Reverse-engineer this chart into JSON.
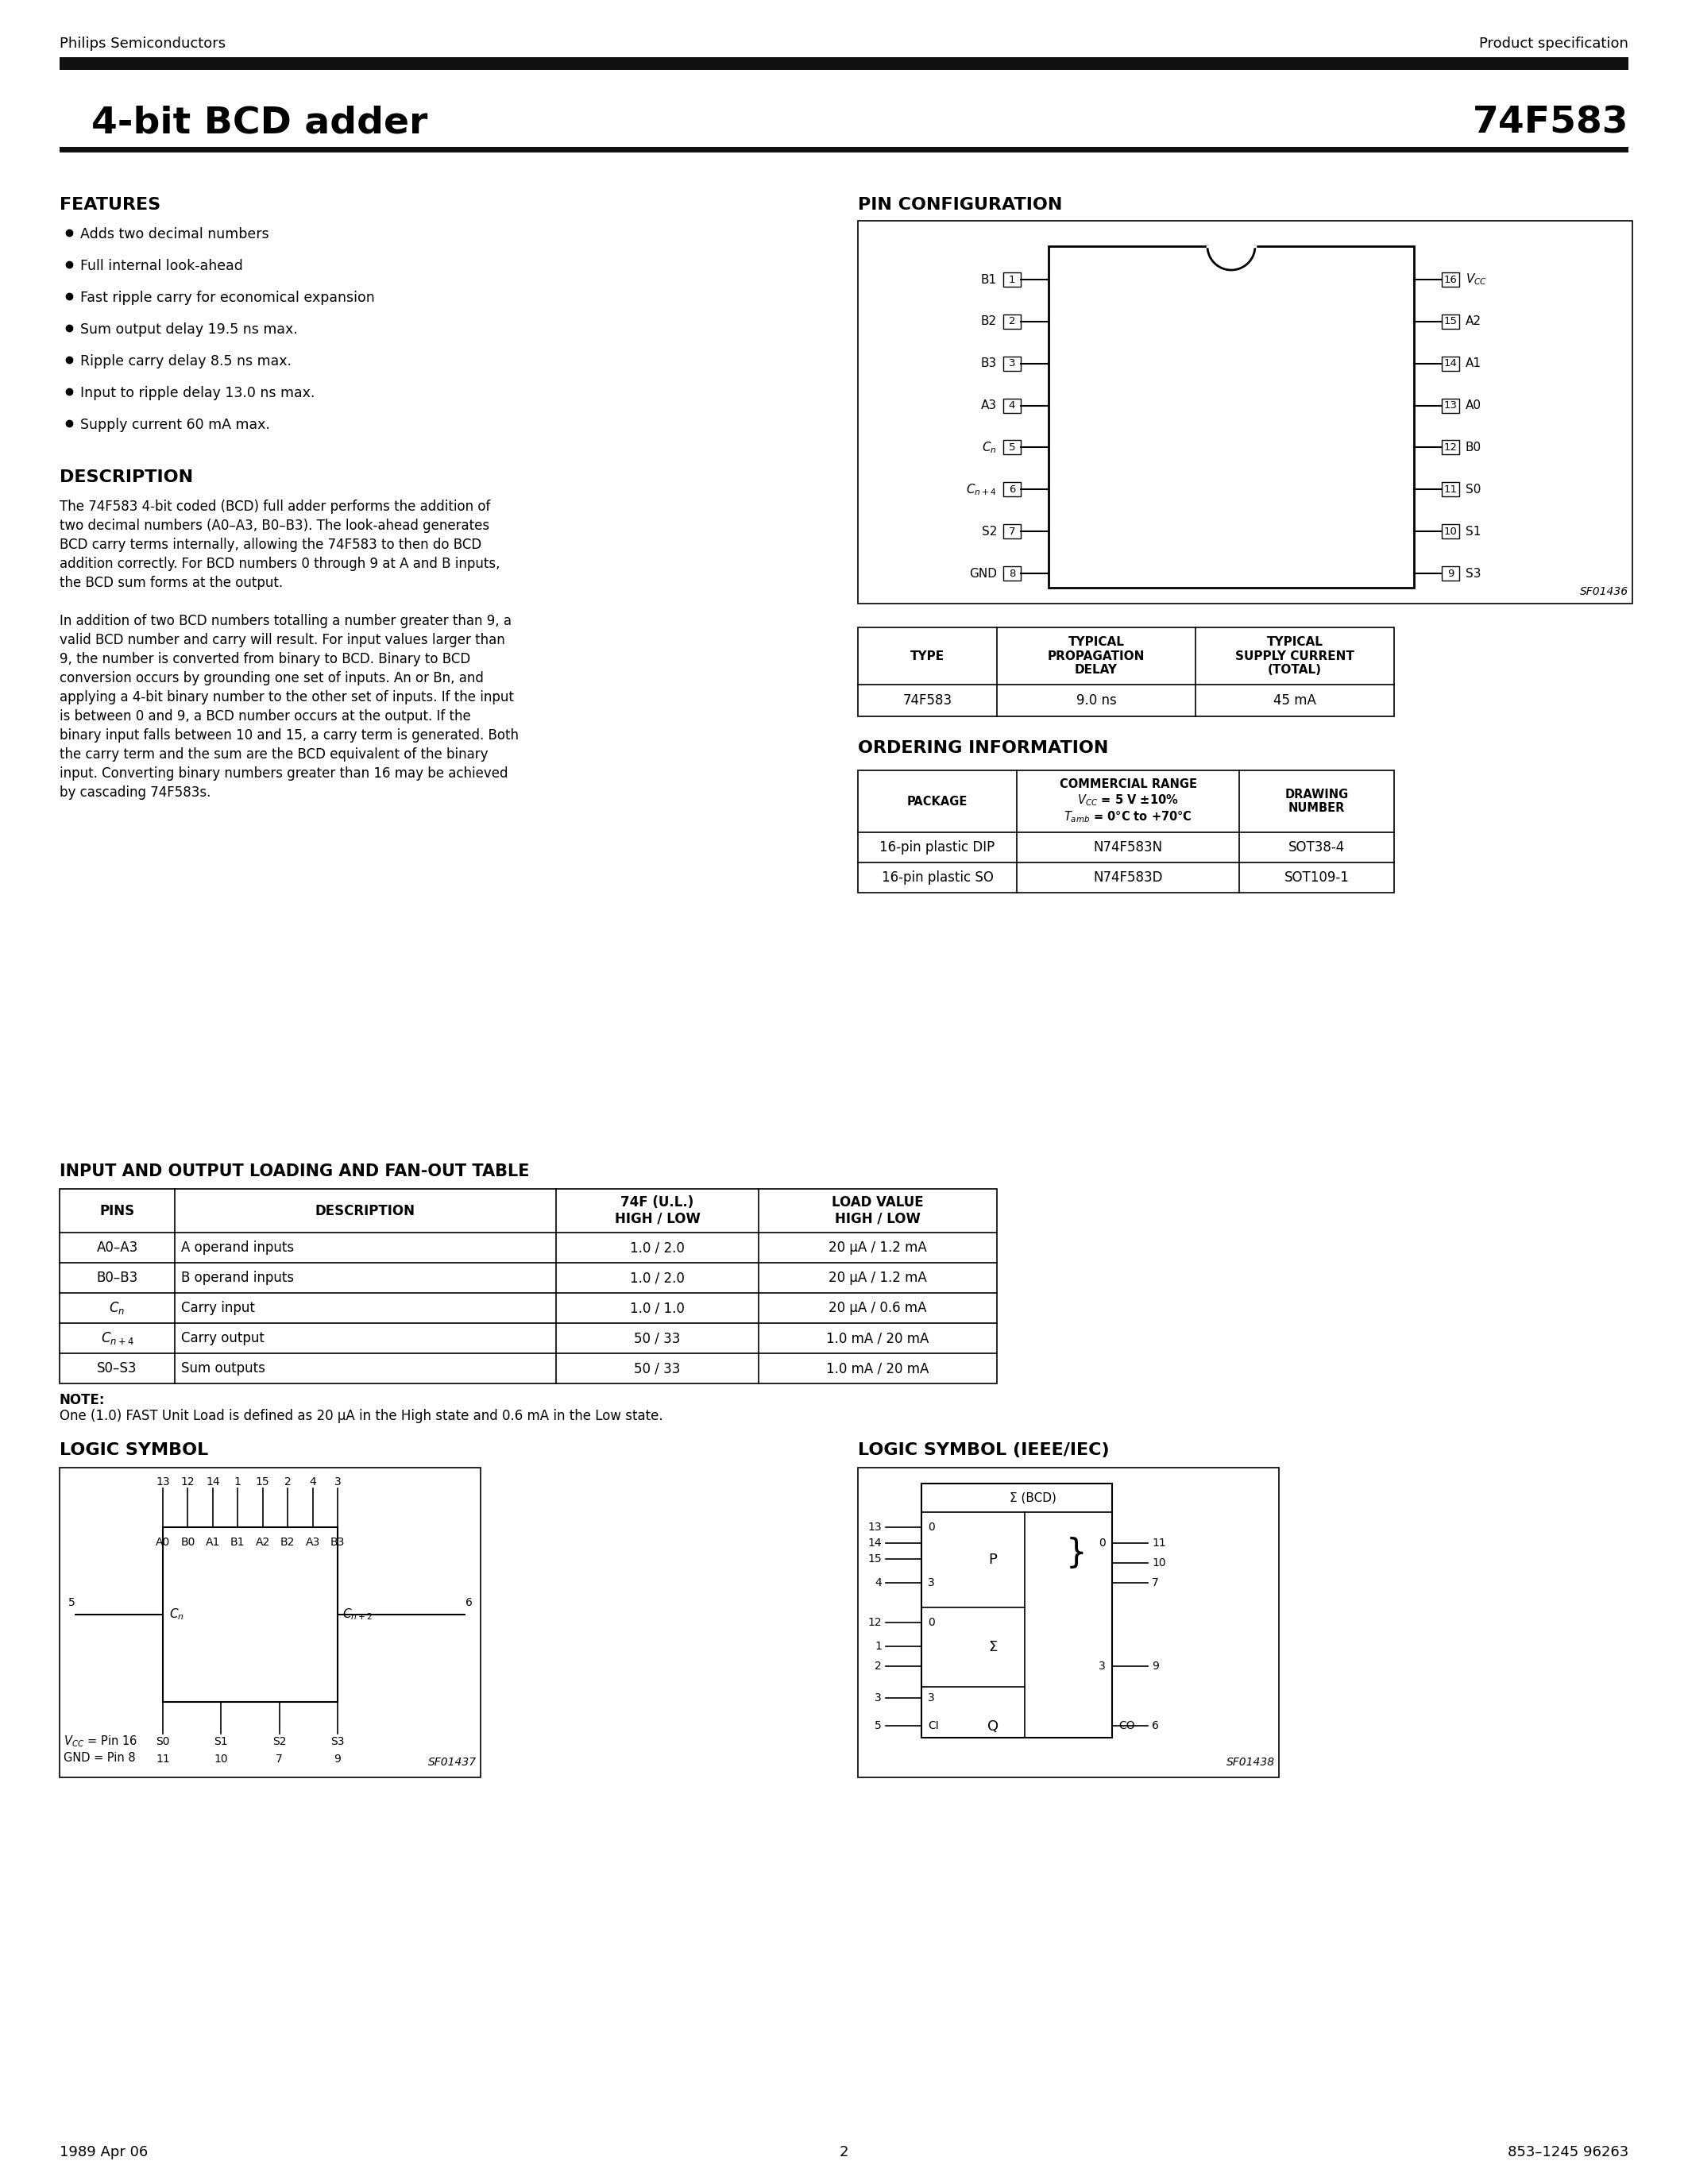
{
  "page_title_left": "4-bit BCD adder",
  "page_title_right": "74F583",
  "header_left": "Philips Semiconductors",
  "header_right": "Product specification",
  "footer_left": "1989 Apr 06",
  "footer_center": "2",
  "footer_right": "853–1245 96263",
  "features_title": "FEATURES",
  "features": [
    "Adds two decimal numbers",
    "Full internal look-ahead",
    "Fast ripple carry for economical expansion",
    "Sum output delay 19.5 ns max.",
    "Ripple carry delay 8.5 ns max.",
    "Input to ripple delay 13.0 ns max.",
    "Supply current 60 mA max."
  ],
  "pin_config_title": "PIN CONFIGURATION",
  "description_title": "DESCRIPTION",
  "description_text": [
    "The 74F583 4-bit coded (BCD) full adder performs the addition of",
    "two decimal numbers (A0–A3, B0–B3). The look-ahead generates",
    "BCD carry terms internally, allowing the 74F583 to then do BCD",
    "addition correctly. For BCD numbers 0 through 9 at A and B inputs,",
    "the BCD sum forms at the output.",
    "",
    "In addition of two BCD numbers totalling a number greater than 9, a",
    "valid BCD number and carry will result. For input values larger than",
    "9, the number is converted from binary to BCD. Binary to BCD",
    "conversion occurs by grounding one set of inputs. An or Bn, and",
    "applying a 4-bit binary number to the other set of inputs. If the input",
    "is between 0 and 9, a BCD number occurs at the output. If the",
    "binary input falls between 10 and 15, a carry term is generated. Both",
    "the carry term and the sum are the BCD equivalent of the binary",
    "input. Converting binary numbers greater than 16 may be achieved",
    "by cascading 74F583s."
  ],
  "typical_table": {
    "headers": [
      "TYPE",
      "TYPICAL\nPROPAGATION\nDELAY",
      "TYPICAL\nSUPPLY CURRENT\n(TOTAL)"
    ],
    "rows": [
      [
        "74F583",
        "9.0 ns",
        "45 mA"
      ]
    ]
  },
  "ordering_title": "ORDERING INFORMATION",
  "ordering_table": {
    "headers": [
      "PACKAGE",
      "COMMERCIAL RANGE\n$V_{CC}$ = 5 V ±10%\n$T_{amb}$ = 0°C to +70°C",
      "DRAWING\nNUMBER"
    ],
    "rows": [
      [
        "16-pin plastic DIP",
        "N74F583N",
        "SOT38-4"
      ],
      [
        "16-pin plastic SO",
        "N74F583D",
        "SOT109-1"
      ]
    ]
  },
  "fanout_title": "INPUT AND OUTPUT LOADING AND FAN-OUT TABLE",
  "fanout_table": {
    "headers": [
      "PINS",
      "DESCRIPTION",
      "74F (U.L.)\nHIGH / LOW",
      "LOAD VALUE\nHIGH / LOW"
    ],
    "rows": [
      [
        "A0–A3",
        "A operand inputs",
        "1.0 / 2.0",
        "20 μA / 1.2 mA"
      ],
      [
        "B0–B3",
        "B operand inputs",
        "1.0 / 2.0",
        "20 μA / 1.2 mA"
      ],
      [
        "$C_n$",
        "Carry input",
        "1.0 / 1.0",
        "20 μA / 0.6 mA"
      ],
      [
        "$C_{n+4}$",
        "Carry output",
        "50 / 33",
        "1.0 mA / 20 mA"
      ],
      [
        "S0–S3",
        "Sum outputs",
        "50 / 33",
        "1.0 mA / 20 mA"
      ]
    ]
  },
  "fanout_note_bold": "NOTE:",
  "fanout_note": "One (1.0) FAST Unit Load is defined as 20 μA in the High state and 0.6 mA in the Low state.",
  "logic_symbol_title": "LOGIC SYMBOL",
  "logic_ieee_title": "LOGIC SYMBOL (IEEE/IEC)",
  "pin_left_labels": [
    "B1",
    "B2",
    "B3",
    "A3",
    "$C_n$",
    "$C_{n+4}$",
    "S2",
    "GND"
  ],
  "pin_left_nums": [
    "1",
    "2",
    "3",
    "4",
    "5",
    "6",
    "7",
    "8"
  ],
  "pin_right_labels": [
    "$V_{CC}$",
    "A2",
    "A1",
    "A0",
    "B0",
    "S0",
    "S1",
    "S3"
  ],
  "pin_right_nums": [
    "16",
    "15",
    "14",
    "13",
    "12",
    "11",
    "10",
    "9"
  ],
  "pin_image_label": "SF01436",
  "logic_sym_label": "SF01437",
  "logic_ieee_label": "SF01438"
}
